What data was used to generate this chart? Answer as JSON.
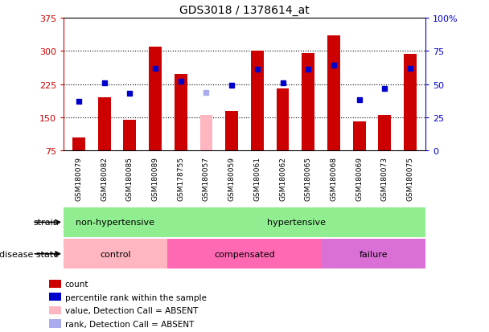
{
  "title": "GDS3018 / 1378614_at",
  "samples": [
    "GSM180079",
    "GSM180082",
    "GSM180085",
    "GSM180089",
    "GSM178755",
    "GSM180057",
    "GSM180059",
    "GSM180061",
    "GSM180062",
    "GSM180065",
    "GSM180068",
    "GSM180069",
    "GSM180073",
    "GSM180075"
  ],
  "counts": [
    105,
    195,
    145,
    310,
    248,
    155,
    165,
    300,
    215,
    295,
    335,
    140,
    155,
    293
  ],
  "absent_count": [
    null,
    null,
    null,
    null,
    null,
    155,
    null,
    null,
    null,
    null,
    null,
    null,
    null,
    null
  ],
  "percentile_ranks": [
    37,
    51,
    43,
    62,
    52,
    null,
    49,
    61,
    51,
    61,
    64,
    38,
    47,
    62
  ],
  "absent_rank": [
    null,
    null,
    null,
    null,
    null,
    44,
    null,
    null,
    null,
    null,
    null,
    null,
    null,
    null
  ],
  "ylim_left": [
    75,
    375
  ],
  "ylim_right": [
    0,
    100
  ],
  "yticks_left": [
    75,
    150,
    225,
    300,
    375
  ],
  "yticks_right": [
    0,
    25,
    50,
    75,
    100
  ],
  "bar_color_normal": "#CC0000",
  "bar_color_absent": "#FFB6C1",
  "dot_color_normal": "#0000CC",
  "dot_color_absent": "#AAAAEE",
  "bar_width": 0.5,
  "tick_label_color_left": "#CC0000",
  "tick_label_color_right": "#0000CC",
  "strain_groups": [
    {
      "label": "non-hypertensive",
      "start": 0,
      "end": 4,
      "color": "#90EE90"
    },
    {
      "label": "hypertensive",
      "start": 4,
      "end": 14,
      "color": "#90EE90"
    }
  ],
  "disease_groups": [
    {
      "label": "control",
      "start": 0,
      "end": 4,
      "color": "#FFB6C1"
    },
    {
      "label": "compensated",
      "start": 4,
      "end": 10,
      "color": "#FF69B4"
    },
    {
      "label": "failure",
      "start": 10,
      "end": 14,
      "color": "#DA70D6"
    }
  ],
  "legend_items": [
    {
      "label": "count",
      "color": "#CC0000"
    },
    {
      "label": "percentile rank within the sample",
      "color": "#0000CC"
    },
    {
      "label": "value, Detection Call = ABSENT",
      "color": "#FFB6C1"
    },
    {
      "label": "rank, Detection Call = ABSENT",
      "color": "#AAAAEE"
    }
  ],
  "grid_yticks": [
    150,
    225,
    300
  ],
  "xticklabel_bg": "#CCCCCC"
}
